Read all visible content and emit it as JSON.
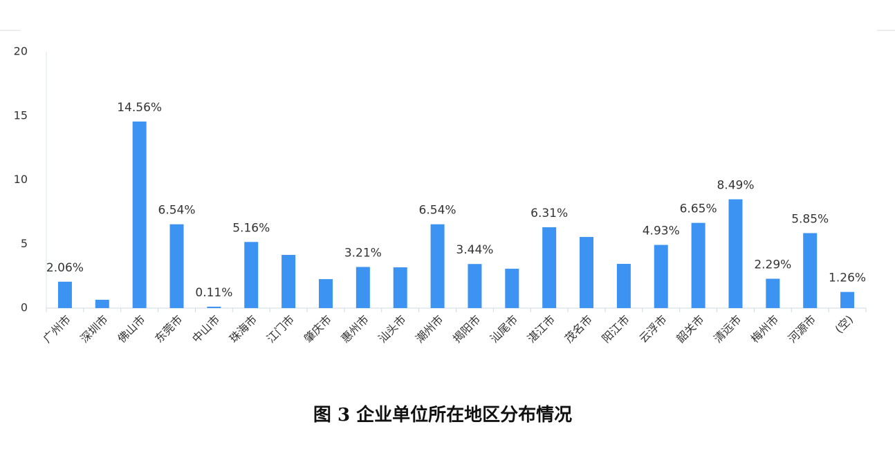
{
  "chart_data": {
    "type": "bar",
    "title": "图 3 企业单位所在地区分布情况",
    "categories": [
      "广州市",
      "深圳市",
      "佛山市",
      "东莞市",
      "中山市",
      "珠海市",
      "江门市",
      "肇庆市",
      "惠州市",
      "汕头市",
      "潮州市",
      "揭阳市",
      "汕尾市",
      "湛江市",
      "茂名市",
      "阳江市",
      "云浮市",
      "韶关市",
      "清远市",
      "梅州市",
      "河源市",
      "(空)"
    ],
    "values": [
      2.06,
      0.65,
      14.56,
      6.54,
      0.11,
      5.16,
      4.15,
      2.26,
      3.21,
      3.18,
      6.54,
      3.44,
      3.07,
      6.31,
      5.55,
      3.45,
      4.93,
      6.65,
      8.49,
      2.29,
      5.85,
      1.26
    ],
    "value_labels": [
      "2.06%",
      null,
      "14.56%",
      "6.54%",
      "0.11%",
      "5.16%",
      null,
      null,
      "3.21%",
      null,
      "6.54%",
      "3.44%",
      null,
      "6.31%",
      null,
      null,
      "4.93%",
      "6.65%",
      "8.49%",
      "2.29%",
      "5.85%",
      "1.26%"
    ],
    "color": "#3d93f2",
    "ylim": [
      0,
      20
    ],
    "yticks": [
      0,
      5,
      10,
      15,
      20
    ],
    "grid": false
  }
}
